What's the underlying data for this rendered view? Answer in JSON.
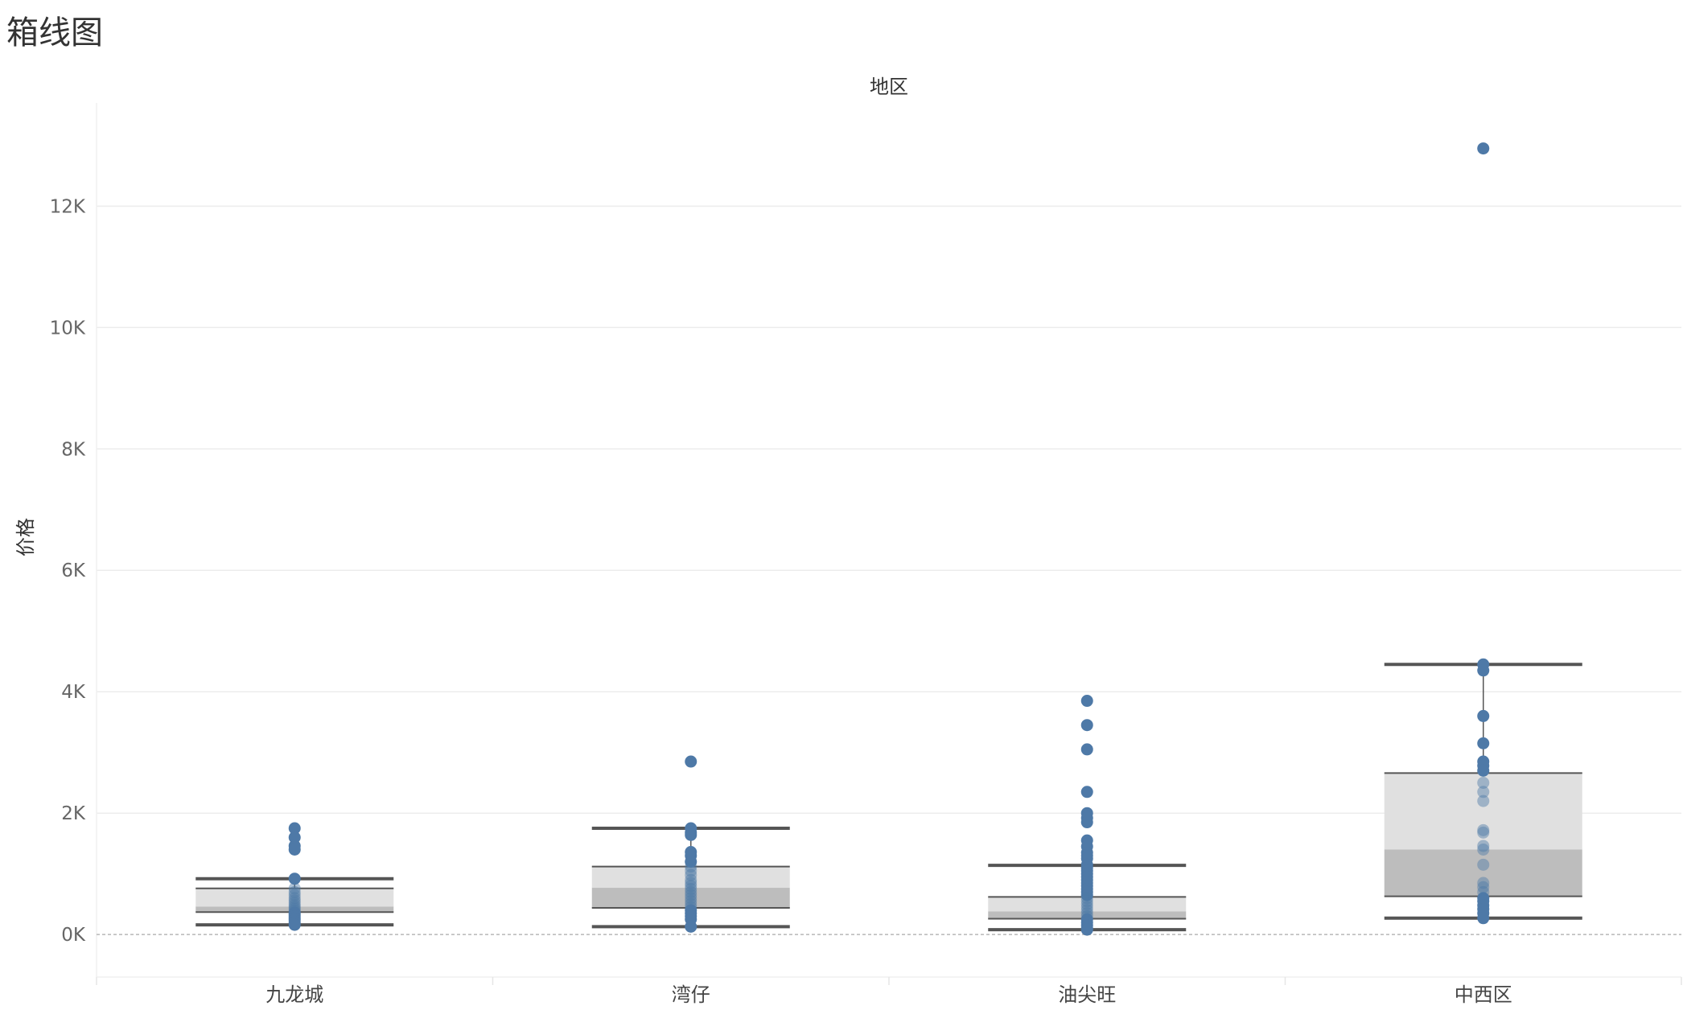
{
  "page": {
    "title": "箱线图"
  },
  "chart_data": {
    "type": "boxplot",
    "title": "箱线图",
    "column_header": "地区",
    "xlabel": "地区",
    "ylabel": "价格",
    "ylim": [
      -700,
      13700
    ],
    "y_ticks": [
      0,
      2000,
      4000,
      6000,
      8000,
      10000,
      12000
    ],
    "y_tick_labels": [
      "0K",
      "2K",
      "4K",
      "6K",
      "8K",
      "10K",
      "12K"
    ],
    "grid": true,
    "zero_line": true,
    "colors": {
      "points": "#4e79a7",
      "box_upper": "#e0e0e0",
      "box_lower": "#bdbdbd",
      "whisker": "#555555",
      "gridline": "#ececec",
      "zero_line": "#b8b8b8"
    },
    "categories": [
      "九龙城",
      "湾仔",
      "油尖旺",
      "中西区"
    ],
    "boxes": [
      {
        "category": "九龙城",
        "lower_whisker": 160,
        "q1": 370,
        "median": 460,
        "q3": 760,
        "upper_whisker": 920
      },
      {
        "category": "湾仔",
        "lower_whisker": 130,
        "q1": 440,
        "median": 770,
        "q3": 1120,
        "upper_whisker": 1750
      },
      {
        "category": "油尖旺",
        "lower_whisker": 80,
        "q1": 260,
        "median": 380,
        "q3": 620,
        "upper_whisker": 1140
      },
      {
        "category": "中西区",
        "lower_whisker": 270,
        "q1": 630,
        "median": 1400,
        "q3": 2660,
        "upper_whisker": 4450
      }
    ],
    "points": [
      {
        "category": "九龙城",
        "values": [
          1750,
          1600,
          1460,
          1400,
          920,
          760,
          700,
          650,
          600,
          560,
          520,
          480,
          450,
          420,
          390,
          360,
          330,
          300,
          270,
          240,
          200,
          160
        ]
      },
      {
        "category": "湾仔",
        "values": [
          2850,
          1750,
          1680,
          1640,
          1360,
          1300,
          1200,
          1120,
          1050,
          980,
          900,
          850,
          800,
          750,
          700,
          650,
          600,
          550,
          500,
          450,
          400,
          350,
          300,
          250,
          130
        ]
      },
      {
        "category": "油尖旺",
        "values": [
          3850,
          3450,
          3050,
          2350,
          2000,
          1920,
          1850,
          1550,
          1450,
          1350,
          1300,
          1250,
          1150,
          1100,
          1050,
          1000,
          950,
          900,
          850,
          800,
          750,
          700,
          650,
          600,
          550,
          500,
          450,
          400,
          350,
          300,
          250,
          200,
          150,
          100,
          80
        ]
      },
      {
        "category": "中西区",
        "values": [
          12950,
          4450,
          4350,
          3600,
          3150,
          2850,
          2780,
          2700,
          2500,
          2350,
          2200,
          1720,
          1680,
          1460,
          1400,
          1150,
          850,
          780,
          700,
          600,
          550,
          480,
          420,
          350,
          270
        ]
      }
    ]
  }
}
